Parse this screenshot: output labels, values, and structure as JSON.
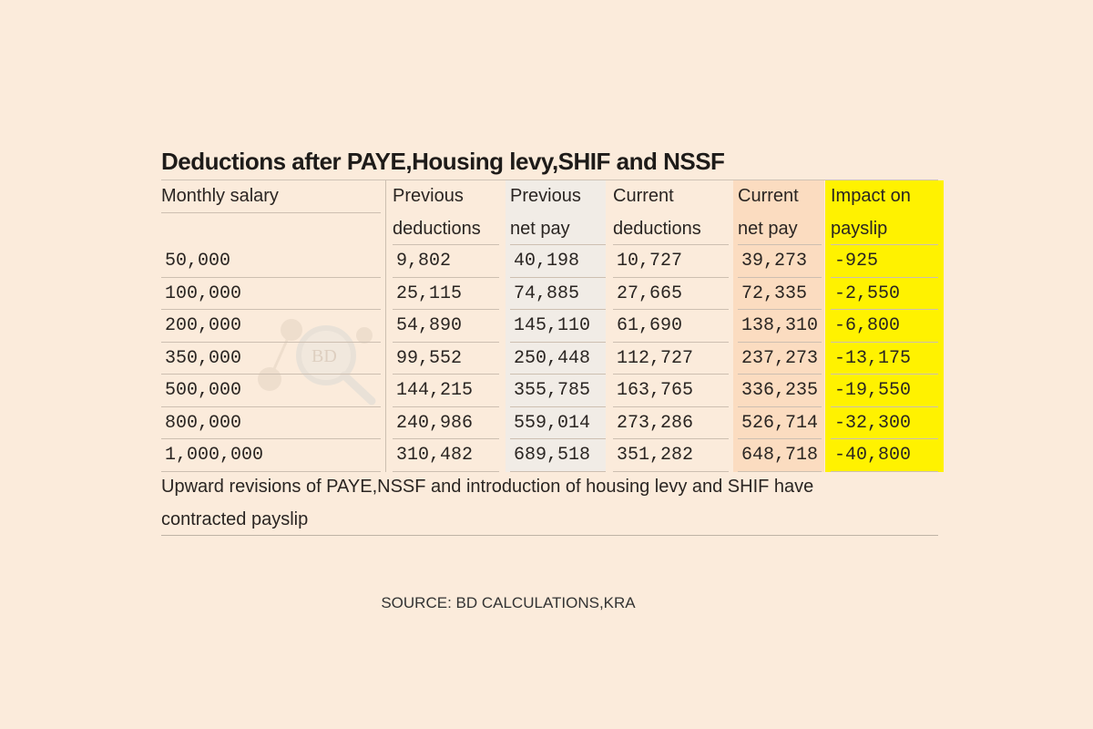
{
  "title": "Deductions after PAYE,Housing levy,SHIF and NSSF",
  "colors": {
    "background": "#fbebdb",
    "previous_net_pay_column": "#f1ece6",
    "current_net_pay_column": "#fbdcc0",
    "impact_column": "#fff200"
  },
  "watermark": "BD DATA",
  "chart_data": {
    "type": "table",
    "columns": [
      {
        "line1": "Monthly salary",
        "line2": ""
      },
      {
        "line1": "Previous",
        "line2": "deductions"
      },
      {
        "line1": "Previous",
        "line2": "net pay"
      },
      {
        "line1": "Current",
        "line2": "deductions"
      },
      {
        "line1": "Current",
        "line2": "net pay"
      },
      {
        "line1": "Impact on",
        "line2": "payslip"
      }
    ],
    "rows": [
      [
        "50,000",
        "9,802",
        "40,198",
        "10,727",
        "39,273",
        "-925"
      ],
      [
        "100,000",
        "25,115",
        "74,885",
        "27,665",
        "72,335",
        "-2,550"
      ],
      [
        "200,000",
        "54,890",
        "145,110",
        "61,690",
        "138,310",
        "-6,800"
      ],
      [
        "350,000",
        "99,552",
        "250,448",
        "112,727",
        "237,273",
        "-13,175"
      ],
      [
        "500,000",
        "144,215",
        "355,785",
        "163,765",
        "336,235",
        "-19,550"
      ],
      [
        "800,000",
        "240,986",
        "559,014",
        "273,286",
        "526,714",
        "-32,300"
      ],
      [
        "1,000,000",
        "310,482",
        "689,518",
        "351,282",
        "648,718",
        "-40,800"
      ]
    ]
  },
  "note_line1": "Upward revisions of PAYE,NSSF and introduction of housing levy and SHIF have",
  "note_line2": "contracted payslip",
  "source": "SOURCE: BD CALCULATIONS,KRA"
}
